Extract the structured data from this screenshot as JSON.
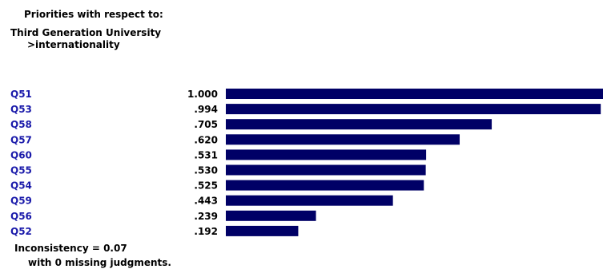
{
  "header": {
    "line1": "Priorities with respect to:",
    "line2": "Third Generation University",
    "line3": ">internationality"
  },
  "chart_data": {
    "type": "bar",
    "orientation": "horizontal",
    "categories": [
      "Q51",
      "Q53",
      "Q58",
      "Q57",
      "Q60",
      "Q55",
      "Q54",
      "Q59",
      "Q56",
      "Q52"
    ],
    "values": [
      1.0,
      0.994,
      0.705,
      0.62,
      0.531,
      0.53,
      0.525,
      0.443,
      0.239,
      0.192
    ],
    "value_labels": [
      "1.000",
      ".994",
      ".705",
      ".620",
      ".531",
      ".530",
      ".525",
      ".443",
      ".239",
      ".192"
    ],
    "xlim": [
      0,
      1
    ],
    "grid": false,
    "legend": "none"
  },
  "footer": {
    "inconsistency": "Inconsistency = 0.07",
    "missing": "with 0  missing judgments."
  },
  "colors": {
    "bar": "#000066",
    "category_label": "#1a1aaa",
    "text": "#000000"
  }
}
